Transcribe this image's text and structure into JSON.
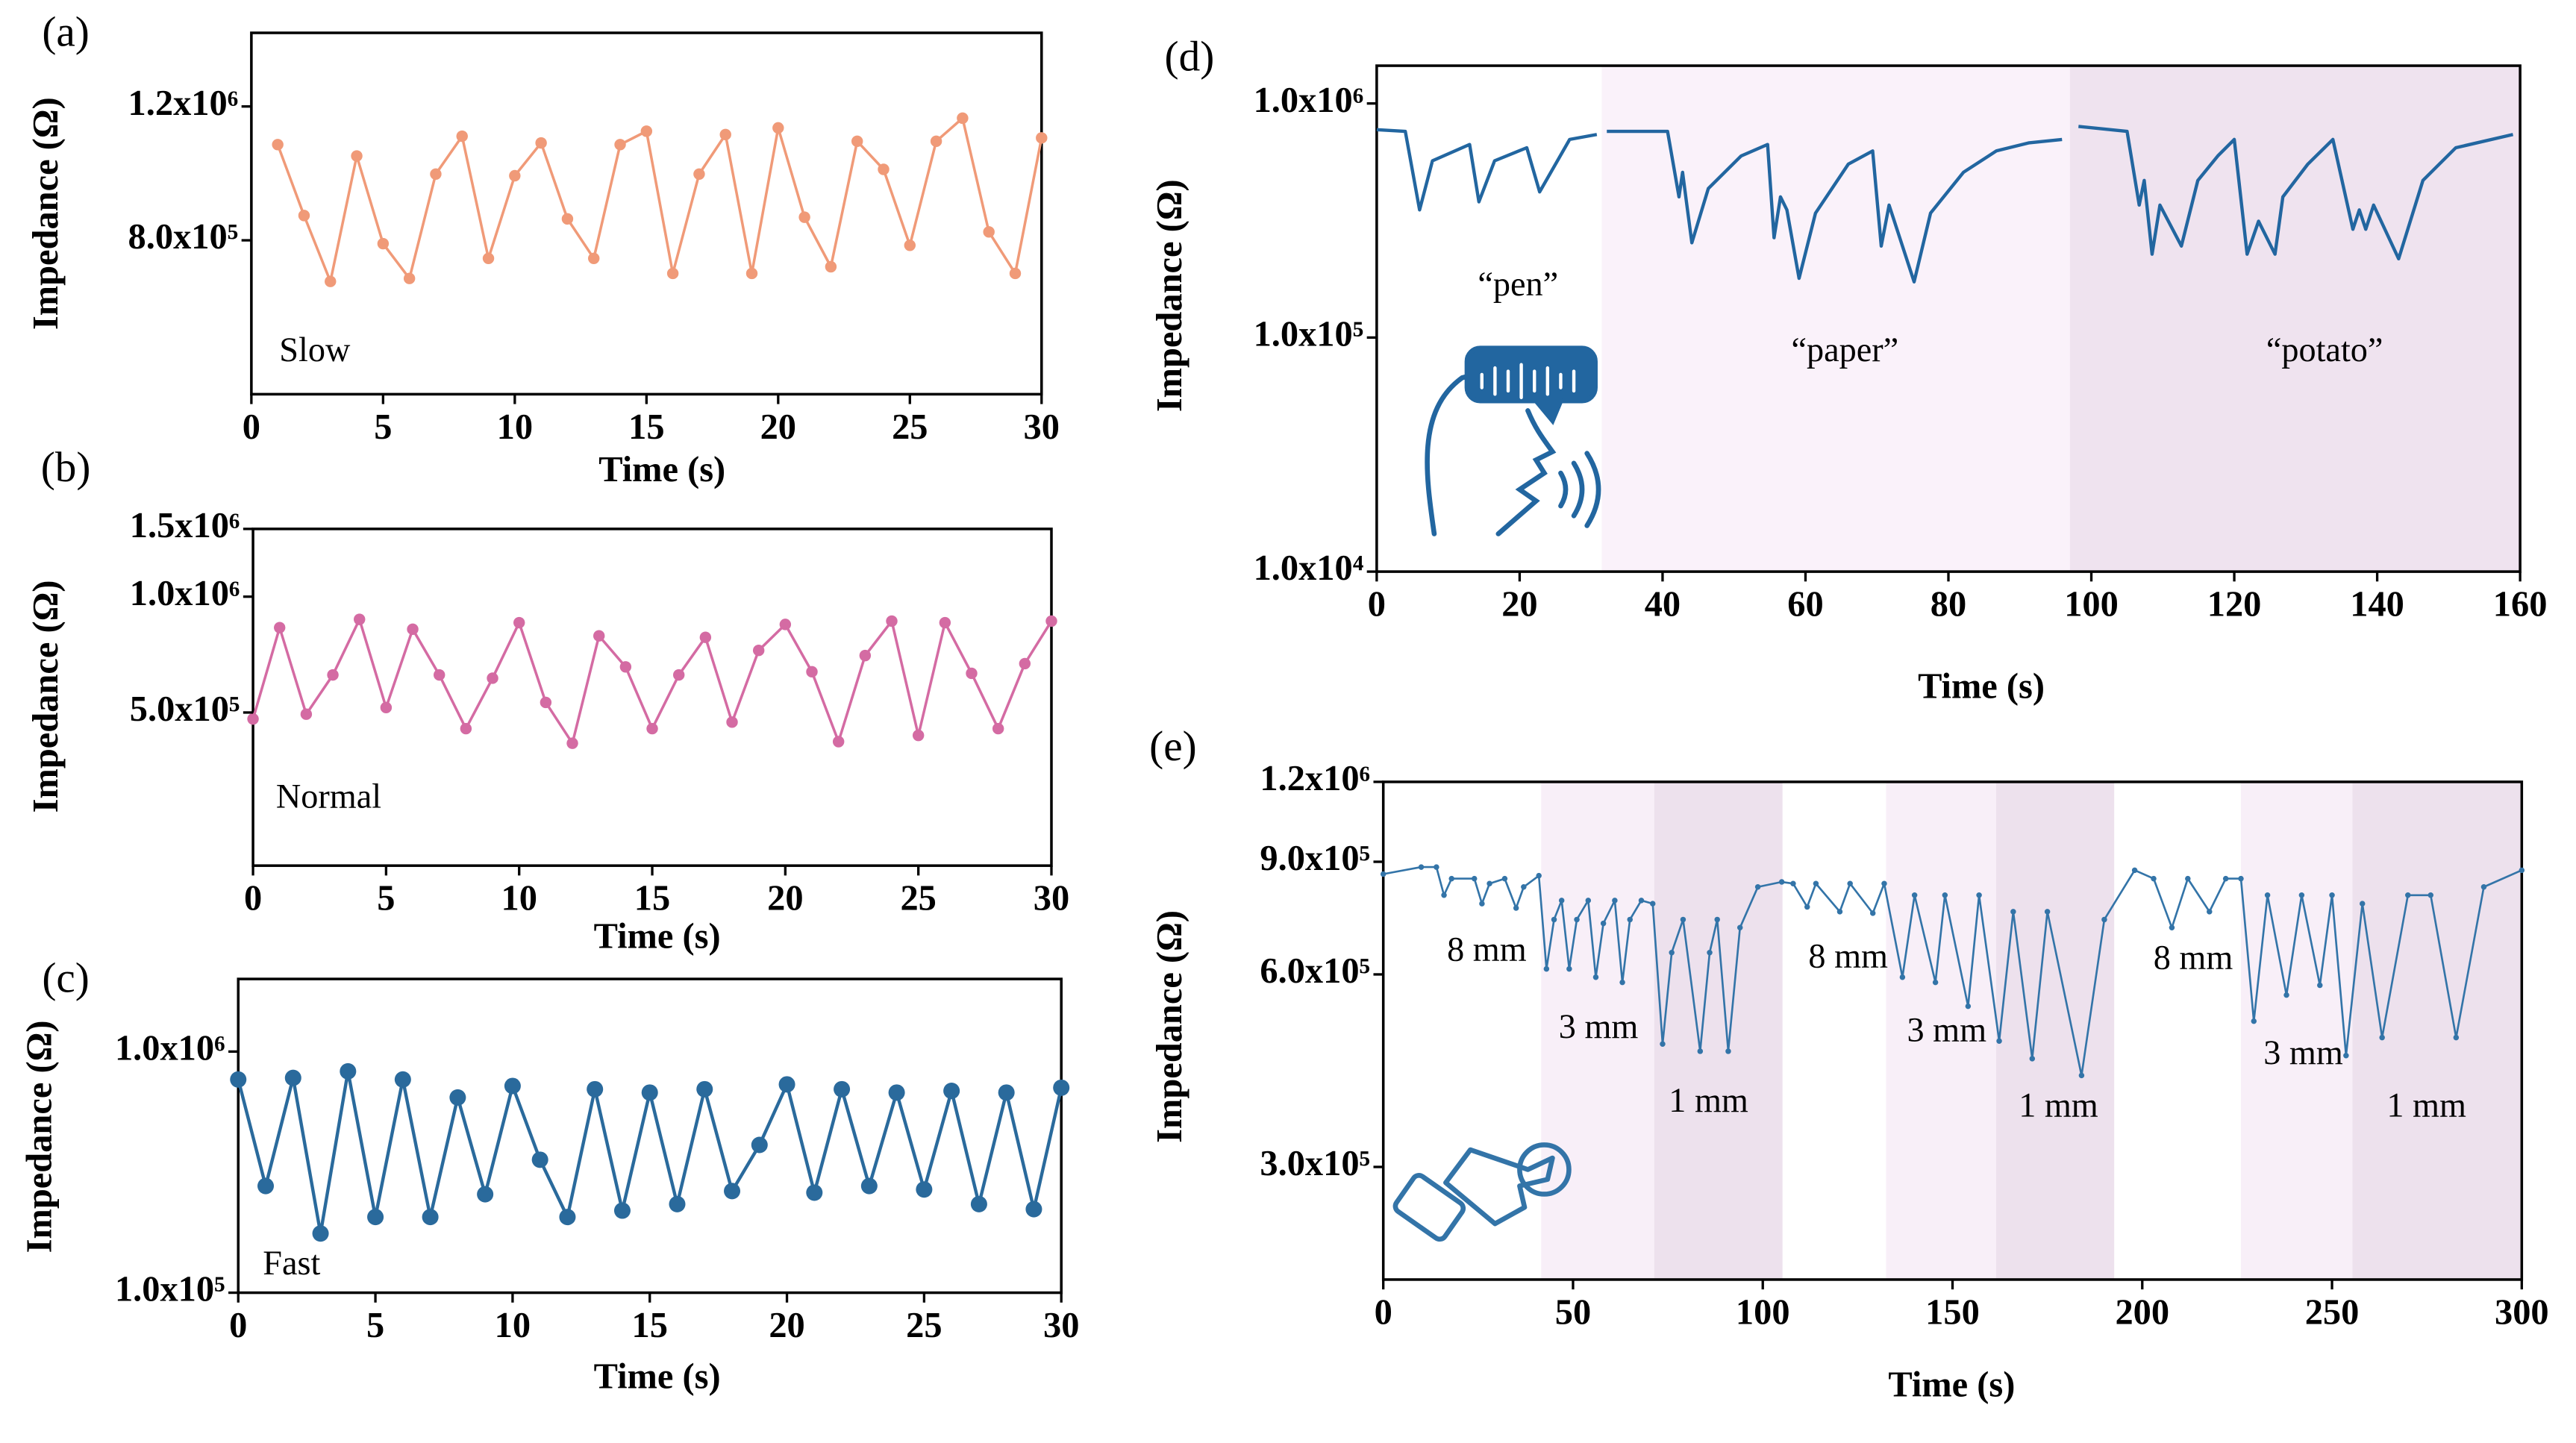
{
  "chart_data": [
    {
      "type": "line",
      "panel_label": "(a)",
      "annotations": [
        "Slow"
      ],
      "x_label": "Time (s)",
      "y_label": "Impedance (Ω)",
      "log_y": false,
      "markers": true,
      "color": "#f09a78",
      "x": [
        1,
        2,
        3,
        4,
        5,
        6,
        7,
        8,
        9,
        10,
        11,
        12,
        13,
        14,
        15,
        16,
        17,
        18,
        19,
        20,
        21,
        22,
        23,
        24,
        25,
        26,
        27,
        28,
        29,
        30
      ],
      "values": [
        1086000,
        874000,
        677000,
        1052000,
        790000,
        686000,
        998000,
        1111000,
        746000,
        993000,
        1091000,
        864000,
        746000,
        1086000,
        1126000,
        701000,
        998000,
        1116000,
        701000,
        1136000,
        869000,
        721000,
        1096000,
        1012000,
        785000,
        1096000,
        1165000,
        825000,
        701000,
        1106000
      ],
      "xlim": [
        0,
        30
      ],
      "xticks": [
        0,
        5,
        10,
        15,
        20,
        25,
        30
      ],
      "ylim": [
        340000,
        1420000
      ],
      "yticks": [
        {
          "value": 800000,
          "label": "8.0x10⁵"
        },
        {
          "value": 1200000,
          "label": "1.2x10⁶"
        }
      ]
    },
    {
      "type": "line",
      "panel_label": "(b)",
      "annotations": [
        "Normal"
      ],
      "x_label": "Time (s)",
      "y_label": "Impedance (Ω)",
      "log_y": true,
      "markers": true,
      "color": "#d46ba3",
      "x": [
        0,
        1,
        2,
        3,
        4,
        5,
        6,
        7,
        8,
        9,
        10,
        11,
        12,
        13,
        14,
        15,
        16,
        17,
        18,
        19,
        20,
        21,
        22,
        23,
        24,
        25,
        26,
        27,
        28,
        29,
        30
      ],
      "values": [
        481000,
        831000,
        495000,
        626000,
        873000,
        515000,
        823000,
        626000,
        454000,
        614000,
        856000,
        531000,
        416000,
        791000,
        657000,
        454000,
        626000,
        784000,
        472000,
        725000,
        847000,
        638000,
        420000,
        703000,
        864000,
        436000,
        856000,
        632000,
        454000,
        670000,
        864000
      ],
      "xlim": [
        0,
        30
      ],
      "xticks": [
        0,
        5,
        10,
        15,
        20,
        25,
        30
      ],
      "ylim": [
        200000,
        1500000
      ],
      "yticks": [
        {
          "value": 500000,
          "label": "5.0x10⁵"
        },
        {
          "value": 1000000,
          "label": "1.0x10⁶"
        },
        {
          "value": 1500000,
          "label": "1.5x10⁶"
        }
      ]
    },
    {
      "type": "line",
      "panel_label": "(c)",
      "annotations": [
        "Fast"
      ],
      "x_label": "Time (s)",
      "y_label": "Impedance (Ω)",
      "log_y": true,
      "markers": true,
      "color": "#2a6a9c",
      "x": [
        0,
        1,
        2,
        3,
        4,
        5,
        6,
        7,
        8,
        9,
        10,
        11,
        12,
        13,
        14,
        15,
        16,
        17,
        18,
        19,
        20,
        21,
        22,
        23,
        24,
        25,
        26,
        27,
        28,
        29,
        30
      ],
      "values": [
        766000,
        277000,
        778000,
        176000,
        828000,
        206000,
        766000,
        206000,
        645000,
        256000,
        720000,
        356000,
        206000,
        698000,
        219000,
        676000,
        233000,
        698000,
        264000,
        410000,
        731000,
        260000,
        698000,
        277000,
        676000,
        268000,
        687000,
        233000,
        676000,
        222000,
        708000
      ],
      "xlim": [
        0,
        30
      ],
      "xticks": [
        0,
        5,
        10,
        15,
        20,
        25,
        30
      ],
      "ylim": [
        100000,
        2000000
      ],
      "yticks": [
        {
          "value": 100000,
          "label": "1.0x10⁵"
        },
        {
          "value": 1000000,
          "label": "1.0x10⁶"
        }
      ]
    },
    {
      "type": "line",
      "panel_label": "(d)",
      "annotations": [
        "“pen”",
        "“paper”",
        "“potato”"
      ],
      "x_label": "Time (s)",
      "y_label": "Impedance (Ω)",
      "log_y": true,
      "markers": false,
      "color": "#2266a0",
      "regions": [
        {
          "x0": 31.5,
          "x1": 97,
          "color": "#faf2fa"
        },
        {
          "x0": 97,
          "x1": 160,
          "color": "#efe3ef"
        }
      ],
      "x": [
        0,
        4,
        6,
        7.8,
        13,
        14.3,
        16.5,
        21,
        22.8,
        27,
        30.8,
        31.5,
        32.2,
        40.7,
        42.3,
        42.8,
        43.4,
        44.1,
        46.4,
        51,
        54.7,
        55.6,
        56.5,
        57.4,
        59.1,
        61.4,
        66,
        69.4,
        70.6,
        71.7,
        75.2,
        77.5,
        82.1,
        86.7,
        91.3,
        95.9,
        97,
        98.2,
        105,
        106.7,
        107.4,
        108.5,
        109.6,
        112.6,
        114.9,
        117.7,
        120,
        121.8,
        123.4,
        125.7,
        126.8,
        130.3,
        133.8,
        136.6,
        137.5,
        138.4,
        139.5,
        143,
        146.4,
        151,
        159
      ],
      "values": [
        773000,
        760000,
        351000,
        569000,
        668000,
        380000,
        569000,
        647000,
        419000,
        702000,
        737000,
        null,
        760000,
        760000,
        399000,
        508000,
        368000,
        254000,
        433000,
        597000,
        668000,
        267000,
        399000,
        351000,
        179000,
        340000,
        551000,
        627000,
        246000,
        368000,
        173000,
        340000,
        508000,
        627000,
        679000,
        702000,
        null,
        798000,
        760000,
        368000,
        469000,
        227000,
        368000,
        246000,
        469000,
        597000,
        702000,
        227000,
        314000,
        227000,
        399000,
        551000,
        702000,
        290000,
        351000,
        290000,
        368000,
        217000,
        469000,
        647000,
        737000
      ],
      "xlim": [
        0,
        160
      ],
      "xticks": [
        0,
        20,
        40,
        60,
        80,
        100,
        120,
        140,
        160
      ],
      "ylim": [
        10000,
        1450000
      ],
      "yticks": [
        {
          "value": 10000,
          "label": "1.0x10⁴"
        },
        {
          "value": 100000,
          "label": "1.0x10⁵"
        },
        {
          "value": 1000000,
          "label": "1.0x10⁶"
        }
      ]
    },
    {
      "type": "line",
      "panel_label": "(e)",
      "annotations": [
        "8 mm",
        "8 mm",
        "8 mm",
        "3 mm",
        "3 mm",
        "3 mm",
        "1 mm",
        "1 mm",
        "1 mm"
      ],
      "x_label": "Time (s)",
      "y_label": "Impedance (Ω)",
      "log_y": true,
      "markers": true,
      "color": "#3374a8",
      "regions": [
        {
          "x0": 41.6,
          "x1": 71.4,
          "color": "#f8eff8"
        },
        {
          "x0": 71.4,
          "x1": 105.2,
          "color": "#ede1ed"
        },
        {
          "x0": 132.5,
          "x1": 161.5,
          "color": "#f8eff8"
        },
        {
          "x0": 161.5,
          "x1": 192.6,
          "color": "#ede1ed"
        },
        {
          "x0": 226,
          "x1": 255.4,
          "color": "#f8eff8"
        },
        {
          "x0": 255.4,
          "x1": 300,
          "color": "#ede1ed"
        }
      ],
      "x": [
        0,
        10,
        14,
        16,
        18,
        24,
        26,
        28,
        32,
        35,
        37,
        41,
        43,
        45,
        47,
        49,
        51,
        54,
        56,
        58,
        61,
        63,
        65,
        68,
        71,
        73.6,
        76,
        79,
        83.5,
        86,
        88,
        90.9,
        94,
        98.7,
        105,
        108,
        111.7,
        114,
        120.3,
        123,
        129,
        132,
        136.8,
        140,
        145.5,
        148,
        154.1,
        157,
        162.3,
        166,
        171,
        175,
        184,
        190,
        198,
        203,
        207.8,
        212,
        217.7,
        222,
        226,
        229.4,
        233,
        238,
        242,
        246.8,
        250,
        253.7,
        258,
        263.2,
        270,
        276,
        282.7,
        290,
        300
      ],
      "values": [
        861000,
        883000,
        883000,
        798000,
        847000,
        847000,
        774000,
        832000,
        847000,
        762000,
        822000,
        856000,
        612000,
        731000,
        783000,
        612000,
        731000,
        783000,
        594000,
        721000,
        783000,
        583000,
        731000,
        783000,
        774000,
        467000,
        649000,
        731000,
        455000,
        649000,
        731000,
        455000,
        710000,
        822000,
        837000,
        832000,
        765000,
        832000,
        752000,
        832000,
        748000,
        832000,
        594000,
        798000,
        583000,
        798000,
        535000,
        798000,
        472000,
        752000,
        443000,
        752000,
        417000,
        731000,
        873000,
        847000,
        710000,
        847000,
        752000,
        847000,
        847000,
        507000,
        798000,
        557000,
        798000,
        577000,
        798000,
        448000,
        774000,
        478000,
        798000,
        798000,
        478000,
        822000,
        873000
      ],
      "xlim": [
        0,
        300
      ],
      "xticks": [
        0,
        50,
        100,
        150,
        200,
        250,
        300
      ],
      "ylim": [
        200000,
        1200000
      ],
      "yticks": [
        {
          "value": 300000,
          "label": "3.0x10⁵"
        },
        {
          "value": 600000,
          "label": "6.0x10⁵"
        },
        {
          "value": 900000,
          "label": "9.0x10⁵"
        },
        {
          "value": 1200000,
          "label": "1.2x10⁶"
        }
      ]
    }
  ]
}
